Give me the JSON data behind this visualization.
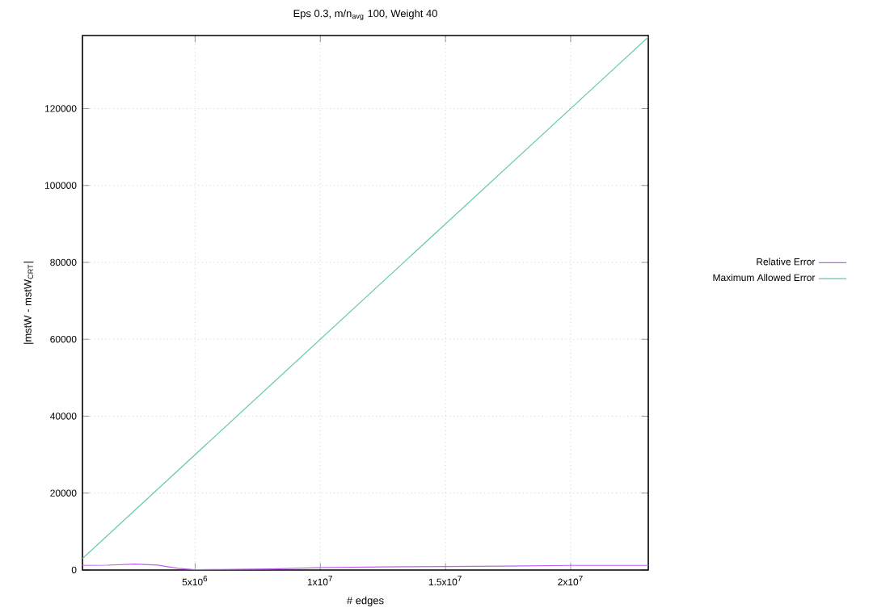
{
  "chart_data": {
    "type": "line",
    "title": "Eps 0.3, m/n$_{avg}$ 100, Weight 40",
    "xlabel": "# edges",
    "ylabel": "|mstW - mstW$_{CRT}$|",
    "xlim": [
      500000,
      23100000
    ],
    "ylim": [
      0,
      139000
    ],
    "xticks": [
      {
        "value": 5000000,
        "label": "5x10$^{6}$"
      },
      {
        "value": 10000000,
        "label": "1x10$^{7}$"
      },
      {
        "value": 15000000,
        "label": "1.5x10$^{7}$"
      },
      {
        "value": 20000000,
        "label": "2x10$^{7}$"
      }
    ],
    "yticks": [
      0,
      20000,
      40000,
      60000,
      80000,
      100000,
      120000
    ],
    "grid": true,
    "legend": "right",
    "marker": "none",
    "line_style": "solid",
    "series": [
      {
        "name": "Relative Error",
        "color": "#c060f0",
        "x": [
          500000,
          1500000,
          2600000,
          3500000,
          4300000,
          5000000,
          6000000,
          8000000,
          10000000,
          12500000,
          15000000,
          17500000,
          20000000,
          23100000
        ],
        "values": [
          1200,
          1250,
          1550,
          1300,
          450,
          100,
          150,
          300,
          600,
          800,
          900,
          1000,
          1200,
          1200
        ]
      },
      {
        "name": "Maximum Allowed Error",
        "color": "#60c8a8",
        "x": [
          500000,
          23100000
        ],
        "values": [
          3000,
          138600
        ]
      }
    ]
  }
}
